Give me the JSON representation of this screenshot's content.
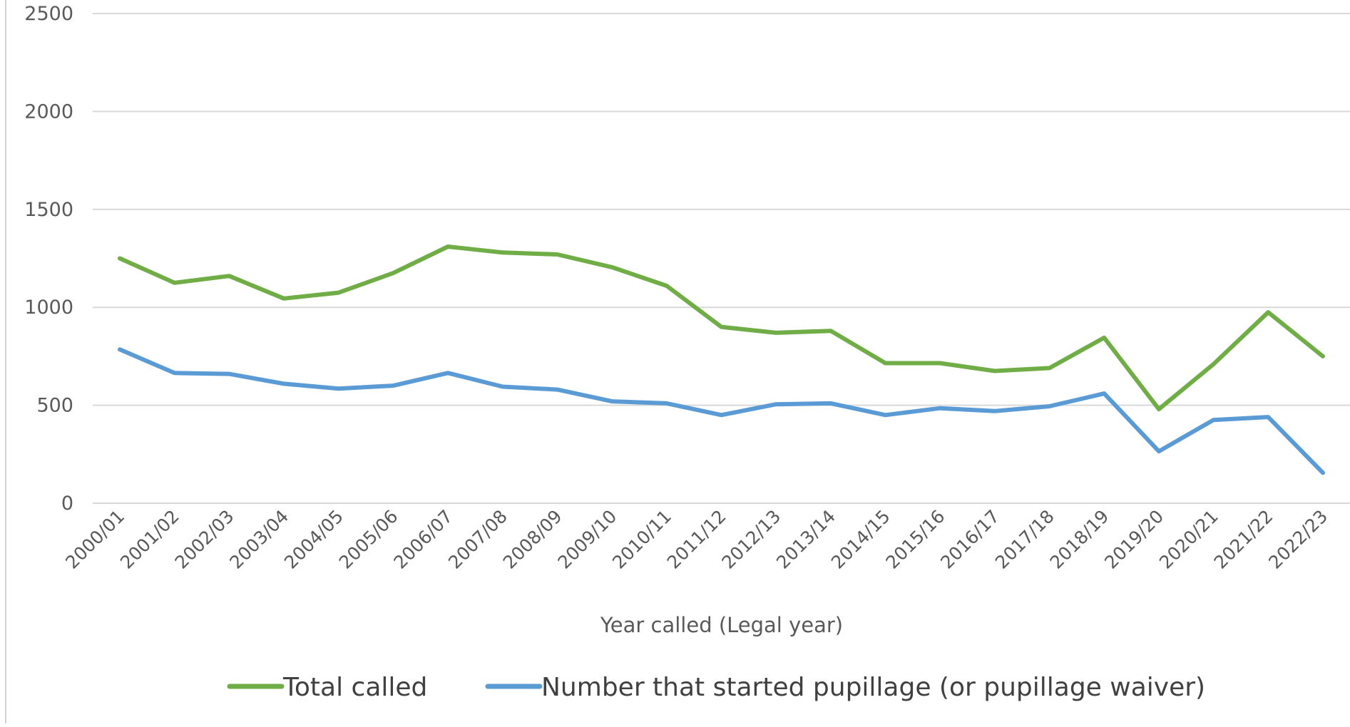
{
  "chart_data": {
    "type": "line",
    "title": "",
    "xlabel": "Year called (Legal year)",
    "ylabel": "",
    "ylim": [
      0,
      2500
    ],
    "yticks": [
      0,
      500,
      1000,
      1500,
      2000,
      2500
    ],
    "grid": true,
    "legend_position": "bottom",
    "categories": [
      "2000/01",
      "2001/02",
      "2002/03",
      "2003/04",
      "2004/05",
      "2005/06",
      "2006/07",
      "2007/08",
      "2008/09",
      "2009/10",
      "2010/11",
      "2011/12",
      "2012/13",
      "2013/14",
      "2014/15",
      "2015/16",
      "2016/17",
      "2017/18",
      "2018/19",
      "2019/20",
      "2020/21",
      "2021/22",
      "2022/23"
    ],
    "series": [
      {
        "name": "Total called",
        "color": "#70ad47",
        "values": [
          1250,
          1125,
          1160,
          1045,
          1075,
          1175,
          1310,
          1280,
          1270,
          1205,
          1110,
          900,
          870,
          880,
          715,
          715,
          675,
          690,
          845,
          480,
          710,
          975,
          750
        ]
      },
      {
        "name": "Number that started pupillage (or pupillage waiver)",
        "color": "#5b9bd5",
        "values": [
          785,
          665,
          660,
          610,
          585,
          600,
          665,
          595,
          580,
          520,
          510,
          450,
          505,
          510,
          450,
          485,
          470,
          495,
          560,
          265,
          425,
          440,
          155
        ]
      }
    ]
  }
}
